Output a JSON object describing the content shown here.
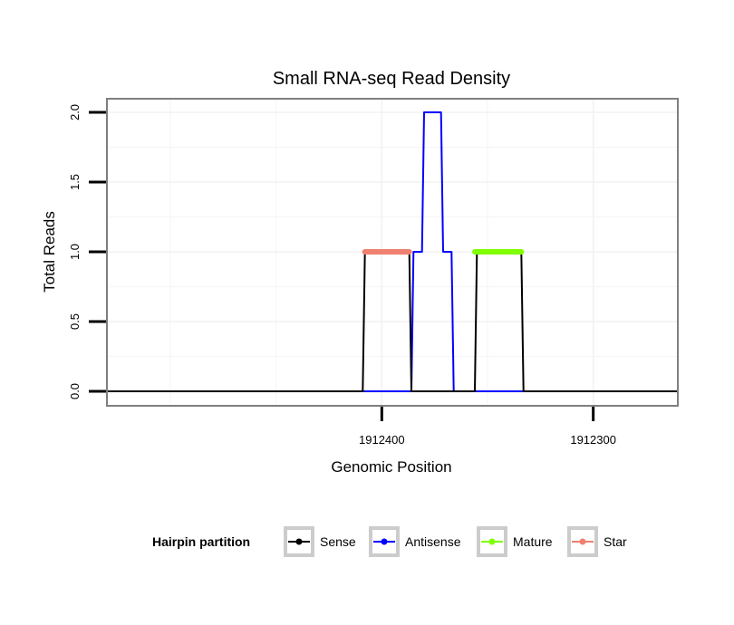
{
  "chart_data": {
    "type": "line",
    "title": "Small RNA-seq Read Density",
    "xlabel": "Genomic Position",
    "ylabel": "Total Reads",
    "x_reversed": true,
    "xlim": [
      1912530,
      1912260
    ],
    "ylim": [
      0,
      2
    ],
    "x_ticks": [
      1912400,
      1912300
    ],
    "x_tick_labels": [
      "1912400",
      "1912300"
    ],
    "y_ticks": [
      0,
      0.5,
      1,
      1.5,
      2
    ],
    "y_tick_labels": [
      "0.0",
      "0.5",
      "1.0",
      "1.5",
      "2.0"
    ],
    "grid": true,
    "series": [
      {
        "name": "Sense",
        "color": "#000000",
        "x": [
          1912530,
          1912409,
          1912408,
          1912387,
          1912386,
          1912356,
          1912355,
          1912334,
          1912333,
          1912260
        ],
        "y": [
          0,
          0,
          1,
          1,
          0,
          0,
          1,
          1,
          0,
          0
        ]
      },
      {
        "name": "Antisense",
        "color": "#0000ff",
        "x": [
          1912530,
          1912386,
          1912385,
          1912381,
          1912380,
          1912372,
          1912371,
          1912367,
          1912366,
          1912260
        ],
        "y": [
          0,
          0,
          1,
          1,
          2,
          2,
          1,
          1,
          0,
          0
        ]
      },
      {
        "name": "Mature",
        "color": "#7fff00",
        "x": [
          1912356,
          1912334
        ],
        "y": [
          1,
          1
        ]
      },
      {
        "name": "Star",
        "color": "#f08070",
        "x": [
          1912408,
          1912387
        ],
        "y": [
          1,
          1
        ]
      }
    ],
    "legend": {
      "title": "Hairpin partition",
      "position": "bottom",
      "entries": [
        "Sense",
        "Antisense",
        "Mature",
        "Star"
      ]
    }
  }
}
